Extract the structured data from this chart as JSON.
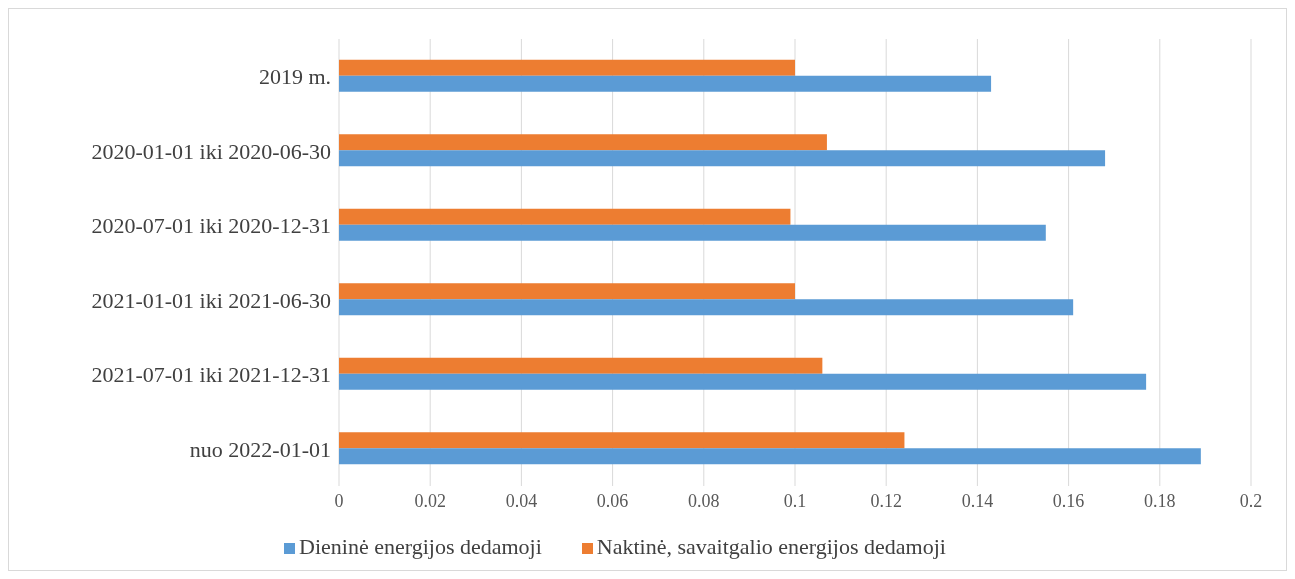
{
  "chart_data": {
    "type": "bar",
    "orientation": "horizontal",
    "categories": [
      "2019 m.",
      "2020-01-01 iki 2020-06-30",
      "2020-07-01 iki 2020-12-31",
      "2021-01-01 iki 2021-06-30",
      "2021-07-01 iki 2021-12-31",
      "nuo 2022-01-01"
    ],
    "series": [
      {
        "name": "Naktinė, savaitgalio energijos dedamoji",
        "color": "#ed7d31",
        "values": [
          0.1,
          0.107,
          0.099,
          0.1,
          0.106,
          0.124
        ]
      },
      {
        "name": "Dieninė energijos dedamoji",
        "color": "#5b9bd5",
        "values": [
          0.143,
          0.168,
          0.155,
          0.161,
          0.177,
          0.189
        ]
      }
    ],
    "xlim": [
      0,
      0.2
    ],
    "xticks": [
      0,
      0.02,
      0.04,
      0.06,
      0.08,
      0.1,
      0.12,
      0.14,
      0.16,
      0.18,
      0.2
    ],
    "grid": "x",
    "legend": "bottom"
  }
}
